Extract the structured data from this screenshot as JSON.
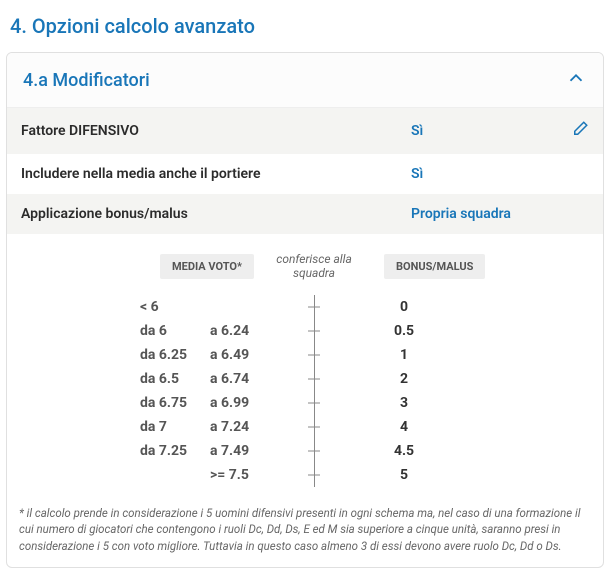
{
  "section_title": "4. Opzioni calcolo avanzato",
  "panel": {
    "title": "4.a Modificatori",
    "rows": [
      {
        "label": "Fattore DIFENSIVO",
        "value": "Sì",
        "editable": true
      },
      {
        "label": "Includere nella media anche il portiere",
        "value": "Sì",
        "editable": false
      },
      {
        "label": "Applicazione bonus/malus",
        "value": "Propria squadra",
        "editable": false
      }
    ],
    "table": {
      "header_left": "MEDIA VOTO*",
      "header_mid_line1": "conferisce alla",
      "header_mid_line2": "squadra",
      "header_right": "BONUS/MALUS",
      "rows": [
        {
          "from": "< 6",
          "to": "",
          "value": "0"
        },
        {
          "from": "da 6",
          "to": "a 6.24",
          "value": "0.5"
        },
        {
          "from": "da 6.25",
          "to": "a 6.49",
          "value": "1"
        },
        {
          "from": "da 6.5",
          "to": "a 6.74",
          "value": "2"
        },
        {
          "from": "da 6.75",
          "to": "a 6.99",
          "value": "3"
        },
        {
          "from": "da 7",
          "to": "a 7.24",
          "value": "4"
        },
        {
          "from": "da 7.25",
          "to": "a 7.49",
          "value": "4.5"
        },
        {
          "from": "",
          "to": ">= 7.5",
          "value": "5"
        }
      ]
    },
    "footnote": "* il calcolo prende in considerazione i 5 uomini difensivi presenti in ogni schema ma, nel caso di una formazione il cui numero di giocatori che contengono i ruoli Dc, Dd, Ds, E ed M sia superiore a cinque unità, saranno presi in considerazione i 5 con voto migliore. Tuttavia in questo caso almeno 3 di essi devono avere ruolo Dc, Dd o Ds."
  }
}
